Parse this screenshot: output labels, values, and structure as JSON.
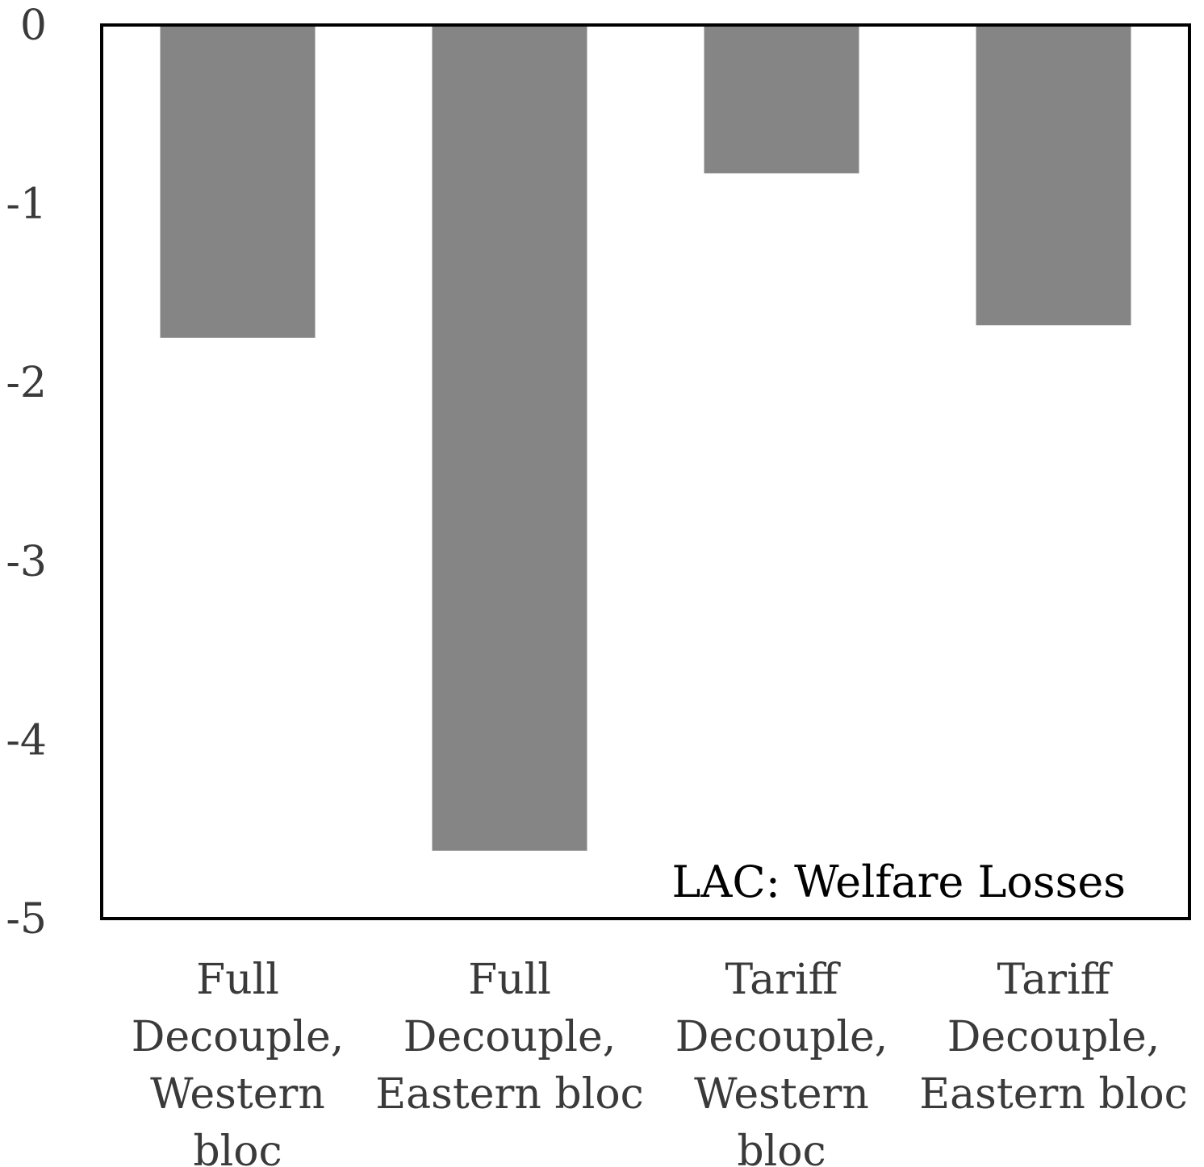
{
  "chart_data": {
    "type": "bar",
    "title": "LAC: Welfare Losses",
    "xlabel": "",
    "ylabel": "",
    "categories": [
      "Full Decouple, Western bloc",
      "Full Decouple, Eastern bloc",
      "Tariff Decouple, Western bloc",
      "Tariff Decouple, Eastern bloc"
    ],
    "category_lines": [
      [
        "Full",
        "Decouple,",
        "Western",
        "bloc"
      ],
      [
        "Full",
        "Decouple,",
        "Eastern bloc"
      ],
      [
        "Tariff",
        "Decouple,",
        "Western",
        "bloc"
      ],
      [
        "Tariff",
        "Decouple,",
        "Eastern bloc"
      ]
    ],
    "values": [
      -1.75,
      -4.62,
      -0.83,
      -1.68
    ],
    "ylim": [
      -5,
      0
    ],
    "yticks": [
      "0",
      "-1",
      "-2",
      "-3",
      "-4",
      "-5"
    ],
    "grid": false,
    "title_position": "bottom-right inside plot",
    "colors": {
      "bar": "#858585",
      "axis": "#000000",
      "text": "#3a3a3a"
    }
  }
}
